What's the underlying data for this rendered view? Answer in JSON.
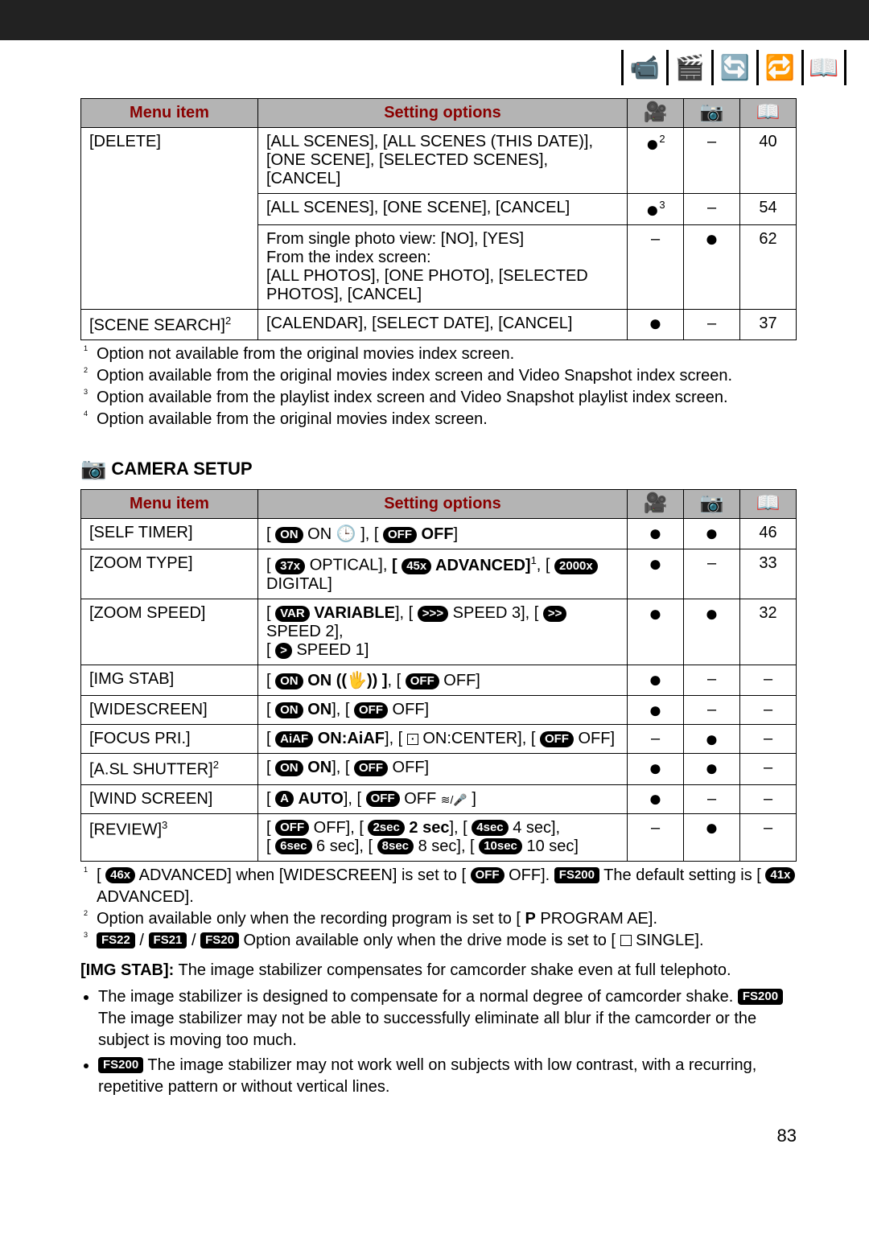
{
  "page_number": "83",
  "tab_icons": [
    "📹",
    "🎬",
    "🔄",
    "🔁",
    "📖"
  ],
  "active_tab_index": 4,
  "table1": {
    "headers": {
      "menu": "Menu item",
      "setting": "Setting options",
      "a_icon": "🎥",
      "b_icon": "📷",
      "c_icon": "📖"
    },
    "rows": [
      {
        "menu": "[DELETE]",
        "opts": "[ALL SCENES], [ALL SCENES (THIS DATE)], [ONE SCENE], [SELECTED SCENES], [CANCEL]",
        "a": "●",
        "a_sup": "2",
        "b": "–",
        "c": "40"
      },
      {
        "menu": "",
        "opts": "[ALL SCENES], [ONE SCENE], [CANCEL]",
        "a": "●",
        "a_sup": "3",
        "b": "–",
        "c": "54"
      },
      {
        "menu": "",
        "opts": "From single photo view: [NO], [YES]\nFrom the index screen:\n[ALL PHOTOS], [ONE PHOTO], [SELECTED PHOTOS], [CANCEL]",
        "a": "–",
        "b": "●",
        "c": "62"
      },
      {
        "menu": "[SCENE SEARCH]",
        "menu_sup": "2",
        "opts": "[CALENDAR], [SELECT DATE], [CANCEL]",
        "a": "●",
        "b": "–",
        "c": "37"
      }
    ],
    "footnotes": [
      "Option not available from the original movies index screen.",
      "Option available from the original movies index screen and Video Snapshot index screen.",
      "Option available from the playlist index screen and Video Snapshot playlist index screen.",
      "Option available from the original movies index screen."
    ]
  },
  "section2_title": "CAMERA SETUP",
  "table2": {
    "headers": {
      "menu": "Menu item",
      "setting": "Setting options",
      "a_icon": "🎥",
      "b_icon": "📷",
      "c_icon": "📖"
    },
    "rows": [
      {
        "menu": "[SELF TIMER]",
        "opts_html": "[ <span class='pill'>ON</span> ON 🕒 ], [ <span class='pill'>OFF</span> <span class='opt-bold'>OFF</span>]",
        "a": "●",
        "b": "●",
        "c": "46"
      },
      {
        "menu": "[ZOOM TYPE]",
        "opts_html": "[ <span class='pill'>37x</span> OPTICAL], <span class='opt-bold'>[ <span class='pill'>45x</span> ADVANCED]</span><sup>1</sup>, [ <span class='pill'>2000x</span> DIGITAL]",
        "a": "●",
        "b": "–",
        "c": "33"
      },
      {
        "menu": "[ZOOM SPEED]",
        "opts_html": "[ <span class='pill'>VAR</span> <span class='opt-bold'>VARIABLE</span>], [ <span class='pill'>&gt;&gt;&gt;</span> SPEED 3], [ <span class='pill'>&gt;&gt;</span> SPEED 2],<br>[ <span class='pill'>&gt;</span> SPEED 1]",
        "a": "●",
        "b": "●",
        "c": "32"
      },
      {
        "menu": "[IMG STAB]",
        "opts_html": "[ <span class='pill'>ON</span> <span class='opt-bold'>ON ((🖐)) ]</span>, [ <span class='pill'>OFF</span> OFF]",
        "a": "●",
        "b": "–",
        "c": "–"
      },
      {
        "menu": "[WIDESCREEN]",
        "opts_html": "[ <span class='pill'>ON</span> <span class='opt-bold'>ON</span>], [ <span class='pill'>OFF</span> OFF]",
        "a": "●",
        "b": "–",
        "c": "–"
      },
      {
        "menu": "[FOCUS PRI.]",
        "opts_html": "[ <span class='pill'>AiAF</span> <span class='opt-bold'>ON:AiAF</span>], [ <span class='outline-box dot-in'></span> ON:CENTER], [ <span class='pill'>OFF</span> OFF]",
        "a": "–",
        "b": "●",
        "c": "–"
      },
      {
        "menu": "[A.SL SHUTTER]",
        "menu_sup": "2",
        "opts_html": "[ <span class='pill'>ON</span> <span class='opt-bold'>ON</span>], [ <span class='pill'>OFF</span> OFF]",
        "a": "●",
        "b": "●",
        "c": "–"
      },
      {
        "menu": "[WIND SCREEN]",
        "opts_html": "[ <span class='pill'>A</span> <span class='opt-bold'>AUTO</span>], [ <span class='pill'>OFF</span> OFF <span style='font-size:14px'>≋/🎤</span> ]",
        "a": "●",
        "b": "–",
        "c": "–"
      },
      {
        "menu": "[REVIEW]",
        "menu_sup": "3",
        "opts_html": "[ <span class='pill'>OFF</span> OFF], [ <span class='pill'>2sec</span> <span class='opt-bold'>2 sec</span>], [ <span class='pill'>4sec</span> 4 sec],<br>[ <span class='pill'>6sec</span> 6 sec], [ <span class='pill'>8sec</span> 8 sec], [ <span class='pill'>10sec</span> 10 sec]",
        "a": "–",
        "b": "●",
        "c": "–"
      }
    ],
    "footnotes_html": [
      "[ <span class='pill'>46x</span> ADVANCED] when [WIDESCREEN] is set to [ <span class='pill'>OFF</span> OFF]. <span class='pill box'>FS200</span>  The default setting is [ <span class='pill'>41x</span> ADVANCED].",
      "Option available only when the recording program is set to [ <b>P</b> PROGRAM AE].",
      "<span class='pill box'>FS22</span> / <span class='pill box'>FS21</span> / <span class='pill box'>FS20</span>  Option available only when the drive mode is set to [ <span class='outline-box'></span> SINGLE]."
    ]
  },
  "body": {
    "img_stab_intro": "[IMG STAB]: The image stabilizer compensates for camcorder shake even at full telephoto.",
    "bullets": [
      "The image stabilizer is designed to compensate for a normal degree of camcorder shake. <span class='pill box'>FS200</span>  The image stabilizer may not be able to successfully eliminate all blur if the camcorder or the subject is moving too much.",
      "<span class='pill box'>FS200</span>  The image stabilizer may not work well on subjects with low contrast, with a recurring, repetitive pattern or without vertical lines."
    ]
  }
}
